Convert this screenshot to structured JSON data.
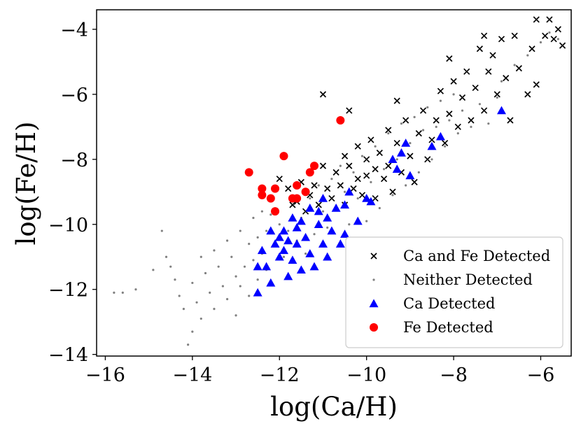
{
  "chart_data": {
    "type": "scatter",
    "title": "",
    "xlabel": "log(Ca/H)",
    "ylabel": "log(Fe/H)",
    "xlim": [
      -16.2,
      -5.3
    ],
    "ylim": [
      -14.05,
      -3.4
    ],
    "xticks": [
      -16,
      -14,
      -12,
      -10,
      -8,
      -6
    ],
    "yticks": [
      -14,
      -12,
      -10,
      -8,
      -6,
      -4
    ],
    "xtick_labels": [
      "−16",
      "−14",
      "−12",
      "−10",
      "−8",
      "−6"
    ],
    "ytick_labels": [
      "−14",
      "−12",
      "−10",
      "−8",
      "−6",
      "−4"
    ],
    "grid": false,
    "legend_position": "lower-right",
    "colors": {
      "both": "#000000",
      "neither": "#808080",
      "ca": "#0000ff",
      "fe": "#ff0000"
    },
    "series": [
      {
        "name": "Neither Detected",
        "key": "neither",
        "marker": "dot",
        "points": [
          [
            -15.8,
            -12.1
          ],
          [
            -15.6,
            -12.1
          ],
          [
            -15.3,
            -12.0
          ],
          [
            -14.9,
            -11.4
          ],
          [
            -14.7,
            -10.2
          ],
          [
            -14.6,
            -11.0
          ],
          [
            -14.5,
            -11.3
          ],
          [
            -14.4,
            -11.7
          ],
          [
            -14.3,
            -12.2
          ],
          [
            -14.2,
            -12.6
          ],
          [
            -14.1,
            -13.7
          ],
          [
            -14.0,
            -13.3
          ],
          [
            -14.0,
            -11.8
          ],
          [
            -13.9,
            -12.4
          ],
          [
            -13.8,
            -11.0
          ],
          [
            -13.8,
            -12.9
          ],
          [
            -13.7,
            -11.5
          ],
          [
            -13.6,
            -12.1
          ],
          [
            -13.5,
            -10.8
          ],
          [
            -13.5,
            -12.6
          ],
          [
            -13.4,
            -11.3
          ],
          [
            -13.3,
            -11.9
          ],
          [
            -13.2,
            -10.5
          ],
          [
            -13.2,
            -12.3
          ],
          [
            -13.1,
            -11.0
          ],
          [
            -13.0,
            -11.6
          ],
          [
            -13.0,
            -12.8
          ],
          [
            -12.9,
            -10.2
          ],
          [
            -12.9,
            -11.9
          ],
          [
            -12.8,
            -11.3
          ],
          [
            -12.7,
            -10.6
          ],
          [
            -12.7,
            -12.2
          ],
          [
            -12.6,
            -9.8
          ],
          [
            -12.6,
            -11.1
          ],
          [
            -12.5,
            -10.4
          ],
          [
            -12.5,
            -11.7
          ],
          [
            -12.4,
            -9.6
          ],
          [
            -12.4,
            -10.9
          ],
          [
            -12.3,
            -10.2
          ],
          [
            -12.3,
            -11.4
          ],
          [
            -12.2,
            -9.7
          ],
          [
            -12.1,
            -10.6
          ],
          [
            -12.0,
            -10.0
          ],
          [
            -11.9,
            -11.0
          ],
          [
            -11.8,
            -10.2
          ],
          [
            -11.7,
            -9.4
          ],
          [
            -11.6,
            -10.5
          ],
          [
            -11.5,
            -9.8
          ],
          [
            -11.4,
            -10.9
          ],
          [
            -11.3,
            -9.2
          ],
          [
            -11.2,
            -10.3
          ],
          [
            -11.1,
            -8.8
          ],
          [
            -11.0,
            -9.6
          ],
          [
            -10.9,
            -10.1
          ],
          [
            -10.8,
            -8.6
          ],
          [
            -10.7,
            -9.5
          ],
          [
            -10.6,
            -8.2
          ],
          [
            -10.5,
            -9.0
          ],
          [
            -10.4,
            -10.0
          ],
          [
            -10.3,
            -8.4
          ],
          [
            -10.2,
            -9.2
          ],
          [
            -10.1,
            -7.9
          ],
          [
            -10.0,
            -9.9
          ],
          [
            -9.9,
            -8.7
          ],
          [
            -9.8,
            -7.6
          ],
          [
            -9.7,
            -9.5
          ],
          [
            -9.6,
            -8.3
          ],
          [
            -9.5,
            -7.2
          ],
          [
            -9.4,
            -9.1
          ],
          [
            -9.3,
            -8.0
          ],
          [
            -9.2,
            -6.9
          ],
          [
            -9.1,
            -8.8
          ],
          [
            -9.0,
            -7.5
          ],
          [
            -8.9,
            -6.7
          ],
          [
            -8.8,
            -8.4
          ],
          [
            -8.7,
            -7.1
          ],
          [
            -8.6,
            -6.4
          ],
          [
            -8.5,
            -8.0
          ],
          [
            -8.4,
            -7.0
          ],
          [
            -8.3,
            -6.2
          ],
          [
            -8.2,
            -7.6
          ],
          [
            -8.1,
            -6.8
          ],
          [
            -8.0,
            -6.0
          ],
          [
            -7.9,
            -7.2
          ],
          [
            -7.8,
            -6.5
          ],
          [
            -7.6,
            -7.0
          ],
          [
            -7.4,
            -6.3
          ],
          [
            -7.2,
            -6.9
          ],
          [
            -7.0,
            -6.1
          ],
          [
            -6.9,
            -5.6
          ],
          [
            -6.6,
            -5.1
          ],
          [
            -6.3,
            -4.8
          ],
          [
            -6.0,
            -4.4
          ],
          [
            -5.8,
            -4.1
          ],
          [
            -5.6,
            -4.3
          ]
        ]
      },
      {
        "name": "Ca and Fe Detected",
        "key": "both",
        "marker": "x",
        "points": [
          [
            -12.0,
            -8.6
          ],
          [
            -11.8,
            -8.9
          ],
          [
            -11.7,
            -9.4
          ],
          [
            -11.6,
            -9.3
          ],
          [
            -11.5,
            -8.7
          ],
          [
            -11.4,
            -9.6
          ],
          [
            -11.3,
            -9.1
          ],
          [
            -11.2,
            -8.8
          ],
          [
            -11.1,
            -9.4
          ],
          [
            -11.0,
            -8.2
          ],
          [
            -10.9,
            -8.9
          ],
          [
            -10.8,
            -9.2
          ],
          [
            -10.7,
            -8.4
          ],
          [
            -10.6,
            -8.8
          ],
          [
            -10.5,
            -7.9
          ],
          [
            -10.5,
            -9.4
          ],
          [
            -10.4,
            -8.2
          ],
          [
            -10.3,
            -8.9
          ],
          [
            -10.2,
            -7.6
          ],
          [
            -10.2,
            -8.6
          ],
          [
            -10.1,
            -9.1
          ],
          [
            -10.0,
            -8.0
          ],
          [
            -10.0,
            -8.5
          ],
          [
            -9.9,
            -7.4
          ],
          [
            -9.8,
            -8.3
          ],
          [
            -9.8,
            -9.2
          ],
          [
            -9.7,
            -7.8
          ],
          [
            -9.6,
            -8.6
          ],
          [
            -9.5,
            -7.1
          ],
          [
            -9.5,
            -8.2
          ],
          [
            -9.4,
            -9.0
          ],
          [
            -9.3,
            -7.5
          ],
          [
            -9.2,
            -8.4
          ],
          [
            -9.1,
            -6.8
          ],
          [
            -9.0,
            -7.9
          ],
          [
            -8.9,
            -8.7
          ],
          [
            -8.8,
            -7.2
          ],
          [
            -8.7,
            -6.5
          ],
          [
            -8.6,
            -8.0
          ],
          [
            -8.5,
            -7.4
          ],
          [
            -8.4,
            -6.8
          ],
          [
            -8.3,
            -5.9
          ],
          [
            -8.2,
            -7.5
          ],
          [
            -8.1,
            -6.6
          ],
          [
            -8.0,
            -5.6
          ],
          [
            -7.9,
            -7.0
          ],
          [
            -7.8,
            -6.1
          ],
          [
            -7.7,
            -5.3
          ],
          [
            -7.6,
            -6.8
          ],
          [
            -7.5,
            -5.8
          ],
          [
            -7.4,
            -4.6
          ],
          [
            -7.3,
            -6.5
          ],
          [
            -7.2,
            -5.3
          ],
          [
            -7.1,
            -4.8
          ],
          [
            -7.0,
            -6.0
          ],
          [
            -6.9,
            -4.3
          ],
          [
            -6.8,
            -5.5
          ],
          [
            -6.7,
            -6.8
          ],
          [
            -6.6,
            -4.2
          ],
          [
            -6.5,
            -5.2
          ],
          [
            -6.3,
            -6.0
          ],
          [
            -6.2,
            -4.6
          ],
          [
            -6.1,
            -5.7
          ],
          [
            -5.9,
            -4.2
          ],
          [
            -5.8,
            -3.7
          ],
          [
            -5.7,
            -4.3
          ],
          [
            -5.6,
            -4.0
          ],
          [
            -5.5,
            -4.5
          ],
          [
            -11.0,
            -6.0
          ],
          [
            -10.4,
            -6.5
          ],
          [
            -9.3,
            -6.2
          ],
          [
            -8.1,
            -4.9
          ],
          [
            -7.3,
            -4.2
          ],
          [
            -6.1,
            -3.7
          ]
        ]
      },
      {
        "name": "Ca Detected",
        "key": "ca",
        "marker": "triangle",
        "points": [
          [
            -12.5,
            -12.1
          ],
          [
            -12.5,
            -11.3
          ],
          [
            -12.4,
            -10.8
          ],
          [
            -12.3,
            -11.3
          ],
          [
            -12.2,
            -10.2
          ],
          [
            -12.2,
            -11.8
          ],
          [
            -12.1,
            -10.6
          ],
          [
            -12.0,
            -11.0
          ],
          [
            -12.0,
            -10.4
          ],
          [
            -11.9,
            -10.8
          ],
          [
            -11.8,
            -10.5
          ],
          [
            -11.8,
            -11.6
          ],
          [
            -11.7,
            -11.1
          ],
          [
            -11.6,
            -10.1
          ],
          [
            -11.6,
            -10.6
          ],
          [
            -11.5,
            -11.4
          ],
          [
            -11.5,
            -9.9
          ],
          [
            -11.4,
            -10.4
          ],
          [
            -11.3,
            -9.5
          ],
          [
            -11.3,
            -10.9
          ],
          [
            -11.2,
            -11.3
          ],
          [
            -11.1,
            -10.0
          ],
          [
            -11.1,
            -9.6
          ],
          [
            -11.0,
            -10.6
          ],
          [
            -10.9,
            -9.8
          ],
          [
            -10.9,
            -11.0
          ],
          [
            -10.8,
            -10.2
          ],
          [
            -10.7,
            -9.5
          ],
          [
            -10.6,
            -10.6
          ],
          [
            -10.5,
            -9.4
          ],
          [
            -10.5,
            -10.3
          ],
          [
            -10.4,
            -9.0
          ],
          [
            -10.2,
            -9.9
          ],
          [
            -10.0,
            -9.2
          ],
          [
            -9.9,
            -9.3
          ],
          [
            -9.4,
            -8.0
          ],
          [
            -9.3,
            -8.3
          ],
          [
            -9.2,
            -7.8
          ],
          [
            -9.1,
            -7.5
          ],
          [
            -9.0,
            -8.5
          ],
          [
            -8.5,
            -7.6
          ],
          [
            -8.3,
            -7.3
          ],
          [
            -6.9,
            -6.5
          ],
          [
            -11.0,
            -9.2
          ],
          [
            -11.7,
            -9.8
          ],
          [
            -11.9,
            -10.2
          ]
        ]
      },
      {
        "name": "Fe Detected",
        "key": "fe",
        "marker": "circle",
        "points": [
          [
            -12.7,
            -8.4
          ],
          [
            -12.4,
            -8.9
          ],
          [
            -12.4,
            -9.1
          ],
          [
            -12.2,
            -9.2
          ],
          [
            -12.1,
            -8.9
          ],
          [
            -12.1,
            -9.6
          ],
          [
            -11.9,
            -7.9
          ],
          [
            -11.7,
            -9.2
          ],
          [
            -11.6,
            -8.8
          ],
          [
            -11.6,
            -9.2
          ],
          [
            -11.4,
            -9.0
          ],
          [
            -11.3,
            -8.4
          ],
          [
            -11.2,
            -8.2
          ],
          [
            -10.6,
            -6.8
          ]
        ]
      }
    ],
    "legend_order": [
      "both",
      "neither",
      "ca",
      "fe"
    ],
    "legend_labels": {
      "both": "Ca and Fe Detected",
      "neither": "Neither Detected",
      "ca": "Ca Detected",
      "fe": "Fe Detected"
    }
  }
}
